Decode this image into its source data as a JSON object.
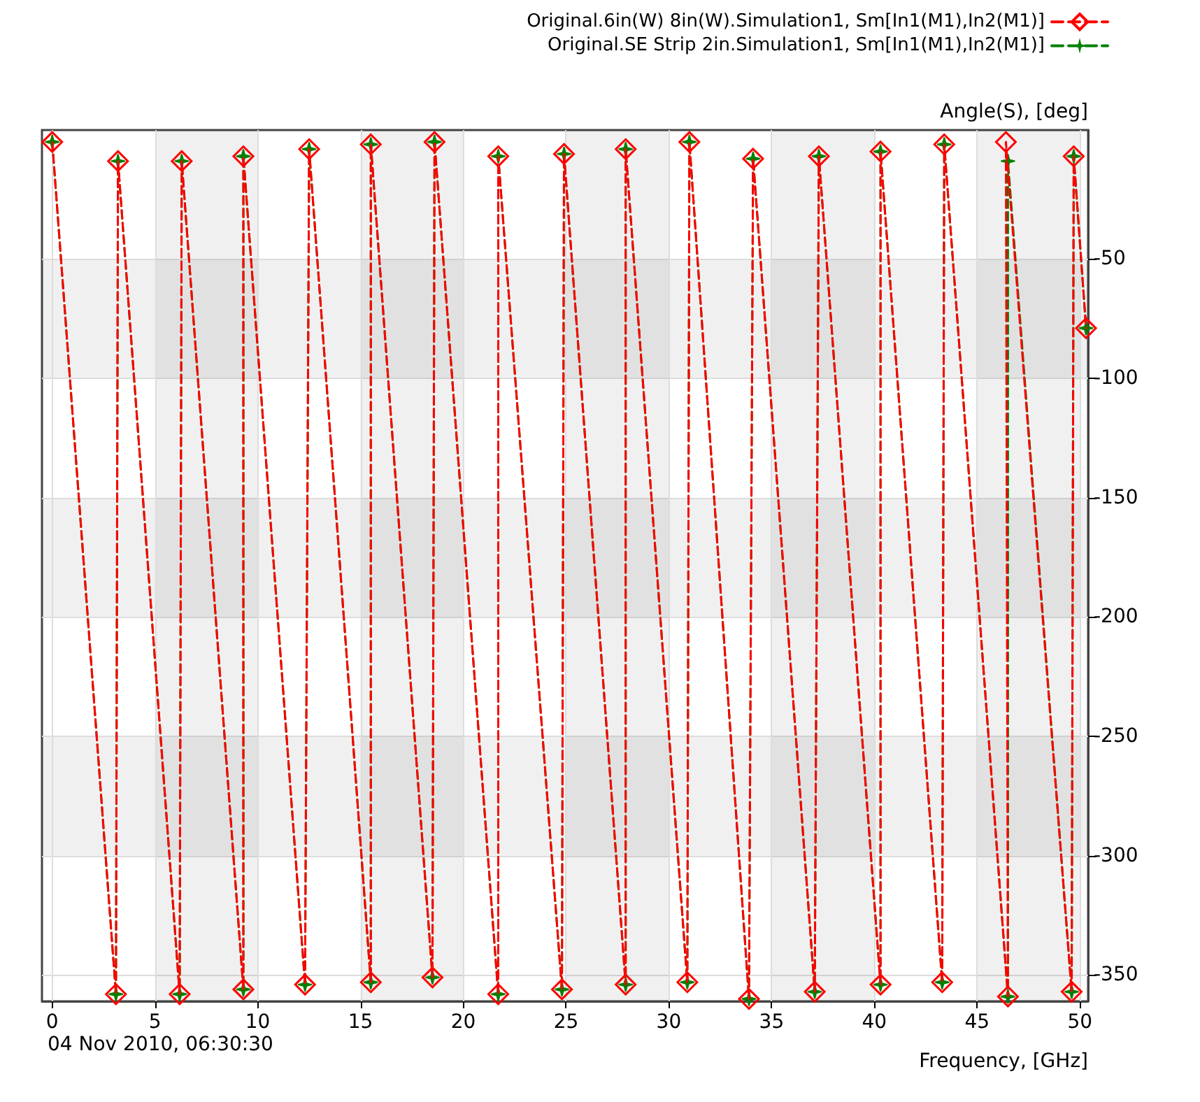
{
  "chart_data": {
    "type": "line",
    "xlabel": "Frequency, [GHz]",
    "ylabel": "Angle(S), [deg]",
    "annotations": [
      "04 Nov 2010, 06:30:30"
    ],
    "xlim": [
      -0.5,
      50.4
    ],
    "ylim": [
      -361,
      4
    ],
    "xticks": [
      0,
      5,
      10,
      15,
      20,
      25,
      30,
      35,
      40,
      45,
      50
    ],
    "yticks": [
      -350,
      -300,
      -250,
      -200,
      -150,
      -100,
      -50
    ],
    "grid": true,
    "legend": "top right",
    "series": [
      {
        "name": "Original.6in(W) 8in(W).Simulation1, Sm[In1(M1),In2(M1)]",
        "color": "#ff0000",
        "marker": "diamond",
        "line_style": "dashed",
        "x": [
          0,
          3.1,
          3.2,
          6.2,
          6.3,
          9.3,
          9.3,
          12.3,
          12.5,
          15.5,
          15.5,
          18.5,
          18.6,
          21.7,
          21.7,
          24.8,
          24.9,
          27.9,
          27.9,
          30.9,
          31.0,
          33.9,
          34.1,
          37.1,
          37.3,
          40.3,
          40.3,
          43.3,
          43.4,
          46.5,
          46.4,
          49.6,
          49.7,
          50.3
        ],
        "values": [
          -1,
          -358,
          -9,
          -358,
          -9,
          -356,
          -7,
          -354,
          -4,
          -353,
          -2,
          -351,
          -1,
          -358,
          -7,
          -356,
          -6,
          -354,
          -4,
          -353,
          -1,
          -360,
          -8,
          -357,
          -7,
          -354,
          -5,
          -353,
          -2,
          -359,
          -1,
          -357,
          -7,
          -79
        ]
      },
      {
        "name": "Original.SE Strip 2in.Simulation1, Sm[In1(M1),In2(M1)]",
        "color": "#008000",
        "marker": "star",
        "line_style": "dashed",
        "x": [
          0,
          3.1,
          3.2,
          6.2,
          6.3,
          9.3,
          9.3,
          12.3,
          12.5,
          15.5,
          15.5,
          18.5,
          18.6,
          21.7,
          21.7,
          24.8,
          24.9,
          27.9,
          27.9,
          30.9,
          31.0,
          33.9,
          34.1,
          37.1,
          37.3,
          40.3,
          40.3,
          43.3,
          43.4,
          46.5,
          46.5,
          49.6,
          49.7,
          50.3
        ],
        "values": [
          -1,
          -358,
          -9,
          -358,
          -9,
          -356,
          -7,
          -354,
          -4,
          -353,
          -2,
          -351,
          -1,
          -358,
          -7,
          -356,
          -6,
          -354,
          -4,
          -353,
          -1,
          -360,
          -8,
          -357,
          -7,
          -354,
          -5,
          -353,
          -2,
          -359,
          -9,
          -357,
          -7,
          -79
        ]
      }
    ]
  }
}
